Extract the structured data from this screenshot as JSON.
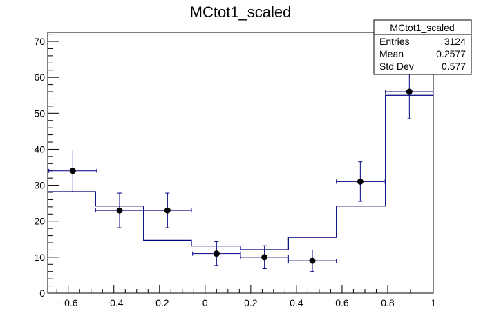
{
  "chart_data": {
    "type": "histogram",
    "title": "MCtot1_scaled",
    "xlabel": "",
    "ylabel": "",
    "xlim": [
      -0.69,
      1.0
    ],
    "ylim": [
      0,
      72.5
    ],
    "grid": false,
    "x_ticks": [
      {
        "value": -0.6,
        "label": "−0.6"
      },
      {
        "value": -0.4,
        "label": "−0.4"
      },
      {
        "value": -0.2,
        "label": "−0.2"
      },
      {
        "value": 0,
        "label": "0"
      },
      {
        "value": 0.2,
        "label": "0.2"
      },
      {
        "value": 0.4,
        "label": "0.4"
      },
      {
        "value": 0.6,
        "label": "0.6"
      },
      {
        "value": 0.8,
        "label": "0.8"
      },
      {
        "value": 1,
        "label": "1"
      }
    ],
    "y_ticks": [
      {
        "value": 0,
        "label": "0"
      },
      {
        "value": 10,
        "label": "10"
      },
      {
        "value": 20,
        "label": "20"
      },
      {
        "value": 30,
        "label": "30"
      },
      {
        "value": 40,
        "label": "40"
      },
      {
        "value": 50,
        "label": "50"
      },
      {
        "value": 60,
        "label": "60"
      },
      {
        "value": 70,
        "label": "70"
      }
    ],
    "histogram": {
      "color": "#000080",
      "bin_edges": [
        -0.69,
        -0.48,
        -0.27,
        -0.06,
        0.155,
        0.365,
        0.575,
        0.79,
        1.0
      ],
      "values": [
        28.2,
        24.2,
        14.7,
        13.1,
        12.1,
        15.5,
        24.2,
        55.0
      ]
    },
    "data_points": {
      "color": "#000000",
      "error_color": "#000080",
      "points": [
        {
          "x": -0.58,
          "y": 34,
          "xerr_low": 0.105,
          "xerr_high": 0.105,
          "yerr": 5.8
        },
        {
          "x": -0.375,
          "y": 23,
          "xerr_low": 0.105,
          "xerr_high": 0.105,
          "yerr": 4.8
        },
        {
          "x": -0.165,
          "y": 23,
          "xerr_low": 0.105,
          "xerr_high": 0.105,
          "yerr": 4.8
        },
        {
          "x": 0.05,
          "y": 11,
          "xerr_low": 0.105,
          "xerr_high": 0.105,
          "yerr": 3.3
        },
        {
          "x": 0.26,
          "y": 10,
          "xerr_low": 0.105,
          "xerr_high": 0.105,
          "yerr": 3.2
        },
        {
          "x": 0.47,
          "y": 9,
          "xerr_low": 0.105,
          "xerr_high": 0.105,
          "yerr": 3.0
        },
        {
          "x": 0.68,
          "y": 31,
          "xerr_low": 0.105,
          "xerr_high": 0.105,
          "yerr": 5.5
        },
        {
          "x": 0.895,
          "y": 56,
          "xerr_low": 0.105,
          "xerr_high": 0.105,
          "yerr": 7.5
        }
      ]
    },
    "stats_box": {
      "title": "MCtot1_scaled",
      "rows": [
        {
          "label": "Entries",
          "value": "3124"
        },
        {
          "label": "Mean",
          "value": "0.2577"
        },
        {
          "label": "Std Dev",
          "value": "0.577"
        }
      ]
    }
  }
}
